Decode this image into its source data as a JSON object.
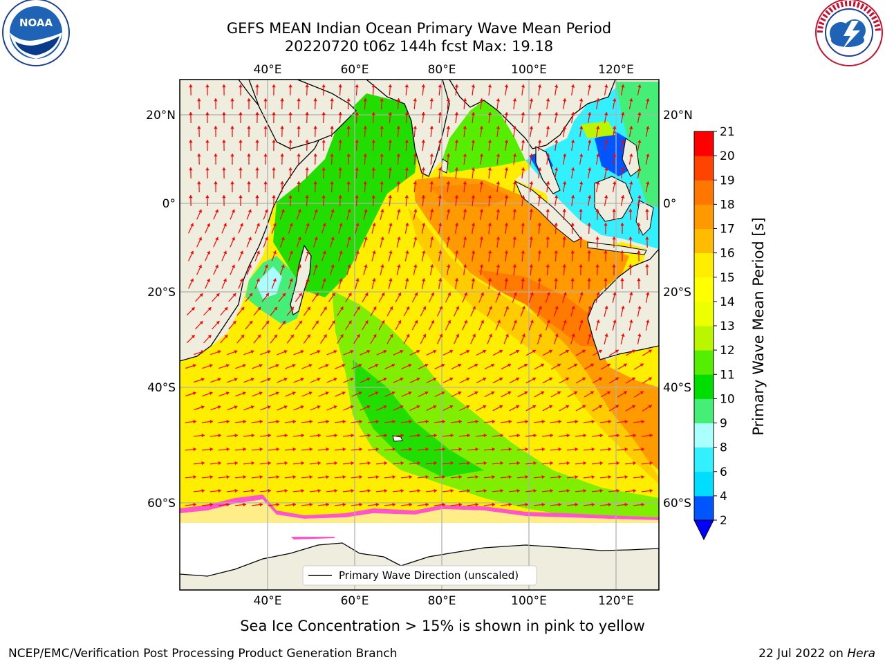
{
  "title": {
    "line1": "GEFS MEAN Indian Ocean Primary Wave Mean Period",
    "line2": "20220720 t06z 144h fcst   Max: 19.18"
  },
  "logos": {
    "left": {
      "name": "NOAA seal",
      "text": "NOAA"
    },
    "right": {
      "name": "National Weather Service seal",
      "text": "NATIONAL WEATHER SERVICE"
    }
  },
  "map": {
    "lon_ticks": [
      "40°E",
      "60°E",
      "80°E",
      "100°E",
      "120°E"
    ],
    "lat_ticks": [
      "20°N",
      "0°",
      "20°S",
      "40°S",
      "60°S"
    ],
    "legend": "Primary Wave Direction (unscaled)"
  },
  "colorbar": {
    "label": "Primary Wave Mean Period [s]",
    "ticks": [
      "2",
      "4",
      "6",
      "8",
      "9",
      "10",
      "11",
      "12",
      "13",
      "14",
      "15",
      "16",
      "17",
      "18",
      "19",
      "20",
      "21"
    ],
    "colors": [
      "#0055ff",
      "#00ddff",
      "#33f0ff",
      "#aaffff",
      "#44ee77",
      "#00dd00",
      "#55ee00",
      "#bbf500",
      "#eeff00",
      "#ffff00",
      "#ffee00",
      "#ffbb00",
      "#ff9900",
      "#ff7700",
      "#ff4400",
      "#ff0000"
    ],
    "under_color": "#0000ff"
  },
  "note": "Sea Ice Concentration > 15% is shown in pink to yellow",
  "footer": {
    "left": "NCEP/EMC/Verification Post Processing Product Generation Branch",
    "right_prefix": "22 Jul 2022 on ",
    "right_host": "Hera"
  }
}
